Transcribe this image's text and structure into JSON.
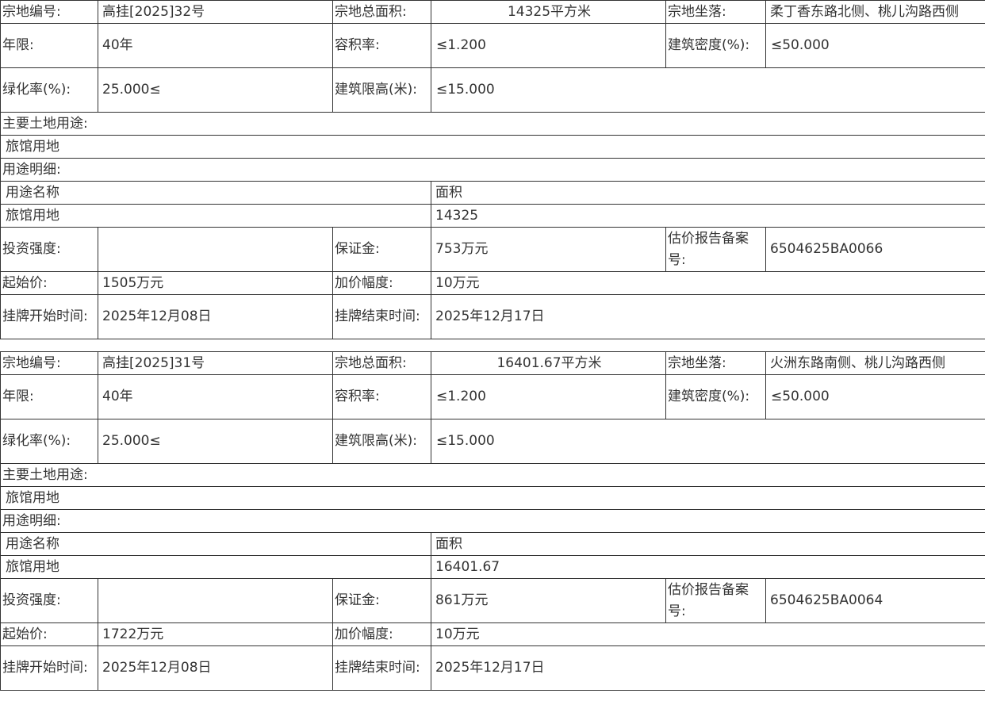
{
  "labels": {
    "parcel_no": "宗地编号:",
    "total_area": "宗地总面积:",
    "location": "宗地坐落:",
    "term": "年限:",
    "plot_ratio": "容积率:",
    "building_density": "建筑密度(%):",
    "green_ratio": "绿化率(%):",
    "height_limit": "建筑限高(米):",
    "main_use": "主要土地用途:",
    "use_detail": "用途明细:",
    "use_name": "用途名称",
    "area": "面积",
    "investment_intensity": "投资强度:",
    "deposit": "保证金:",
    "appraisal_no": "估价报告备案号:",
    "start_price": "起始价:",
    "increment": "加价幅度:",
    "listing_start": "挂牌开始时间:",
    "listing_end": "挂牌结束时间:"
  },
  "parcels": [
    {
      "parcel_no": "高挂[2025]32号",
      "total_area": "14325平方米",
      "location": "柔丁香东路北侧、桃儿沟路西侧",
      "term": "40年",
      "plot_ratio": "≤1.200",
      "building_density": "≤50.000",
      "green_ratio": "25.000≤",
      "height_limit": "≤15.000",
      "main_use": "旅馆用地",
      "use_name": "旅馆用地",
      "use_area": "14325",
      "investment_intensity": "",
      "deposit": "753万元",
      "appraisal_no": "6504625BA0066",
      "start_price": "1505万元",
      "increment": "10万元",
      "listing_start": "2025年12月08日",
      "listing_end": "2025年12月17日"
    },
    {
      "parcel_no": "高挂[2025]31号",
      "total_area": "16401.67平方米",
      "location": "火洲东路南侧、桃儿沟路西侧",
      "term": "40年",
      "plot_ratio": "≤1.200",
      "building_density": "≤50.000",
      "green_ratio": "25.000≤",
      "height_limit": "≤15.000",
      "main_use": "旅馆用地",
      "use_name": "旅馆用地",
      "use_area": "16401.67",
      "investment_intensity": "",
      "deposit": "861万元",
      "appraisal_no": "6504625BA0064",
      "start_price": "1722万元",
      "increment": "10万元",
      "listing_start": "2025年12月08日",
      "listing_end": "2025年12月17日"
    }
  ]
}
